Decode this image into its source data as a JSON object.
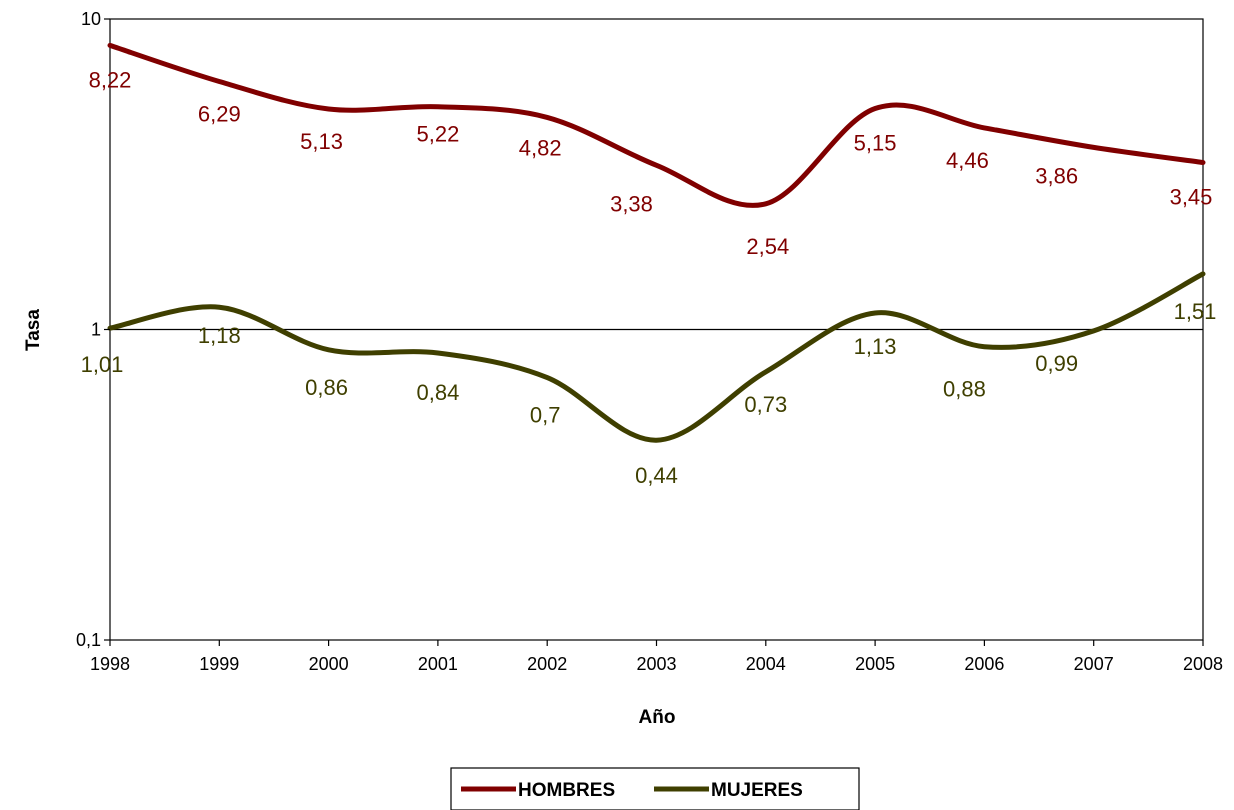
{
  "chart_data": {
    "type": "line",
    "x": [
      1998,
      1999,
      2000,
      2001,
      2002,
      2003,
      2004,
      2005,
      2006,
      2007,
      2008
    ],
    "x_tick_labels": [
      "1998",
      "1999",
      "2000",
      "2001",
      "2002",
      "2003",
      "2004",
      "2005",
      "2006",
      "2007",
      "2008"
    ],
    "y_scale": "log",
    "ylim": [
      0.1,
      10
    ],
    "y_tick_values": [
      0.1,
      1,
      10
    ],
    "y_tick_labels": [
      "0,1",
      "1",
      "10"
    ],
    "xlabel": "Año",
    "ylabel": "Tasa",
    "grid": false,
    "reference_line_y": 1,
    "legend_position": "bottom",
    "series": [
      {
        "name": "HOMBRES",
        "color": "#800000",
        "values": [
          8.22,
          6.29,
          5.13,
          5.22,
          4.82,
          3.38,
          2.54,
          5.15,
          4.46,
          3.86,
          3.45
        ],
        "labels": [
          "8,22",
          "6,29",
          "5,13",
          "5,22",
          "4,82",
          "3,38",
          "2,54",
          "5,15",
          "4,46",
          "3,86",
          "3,45"
        ]
      },
      {
        "name": "MUJERES",
        "color": "#3f3f00",
        "values": [
          1.01,
          1.18,
          0.86,
          0.84,
          0.7,
          0.44,
          0.73,
          1.13,
          0.88,
          0.99,
          1.51
        ],
        "labels": [
          "1,01",
          "1,18",
          "0,86",
          "0,84",
          "0,7",
          "0,44",
          "0,73",
          "1,13",
          "0,88",
          "0,99",
          "1,51"
        ]
      }
    ]
  }
}
